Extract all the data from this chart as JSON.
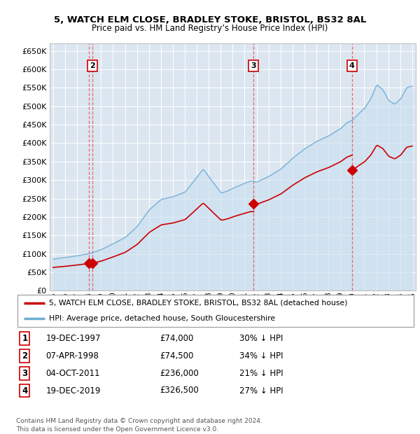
{
  "title1": "5, WATCH ELM CLOSE, BRADLEY STOKE, BRISTOL, BS32 8AL",
  "title2": "Price paid vs. HM Land Registry’s House Price Index (HPI)",
  "xlim": [
    1994.7,
    2025.3
  ],
  "ylim": [
    0,
    670000
  ],
  "yticks": [
    0,
    50000,
    100000,
    150000,
    200000,
    250000,
    300000,
    350000,
    400000,
    450000,
    500000,
    550000,
    600000,
    650000
  ],
  "ytick_labels": [
    "£0",
    "£50K",
    "£100K",
    "£150K",
    "£200K",
    "£250K",
    "£300K",
    "£350K",
    "£400K",
    "£450K",
    "£500K",
    "£550K",
    "£600K",
    "£650K"
  ],
  "sales": [
    {
      "num": 1,
      "year": 1997.97,
      "price": 74000
    },
    {
      "num": 2,
      "year": 1998.27,
      "price": 74500
    },
    {
      "num": 3,
      "year": 2011.75,
      "price": 236000
    },
    {
      "num": 4,
      "year": 2019.97,
      "price": 326500
    }
  ],
  "hpi_line_color": "#6baed6",
  "hpi_fill_color": "#c9dff0",
  "sale_line_color": "#cc0000",
  "vline_color": "#e06060",
  "plot_bg_color": "#dce6f1",
  "grid_color": "#ffffff",
  "legend1": "5, WATCH ELM CLOSE, BRADLEY STOKE, BRISTOL, BS32 8AL (detached house)",
  "legend2": "HPI: Average price, detached house, South Gloucestershire",
  "footer1": "Contains HM Land Registry data © Crown copyright and database right 2024.",
  "footer2": "This data is licensed under the Open Government Licence v3.0.",
  "table": [
    [
      "1",
      "19-DEC-1997",
      "£74,000",
      "30% ↓ HPI"
    ],
    [
      "2",
      "07-APR-1998",
      "£74,500",
      "34% ↓ HPI"
    ],
    [
      "3",
      "04-OCT-2011",
      "£236,000",
      "21% ↓ HPI"
    ],
    [
      "4",
      "19-DEC-2019",
      "£326,500",
      "27% ↓ HPI"
    ]
  ]
}
